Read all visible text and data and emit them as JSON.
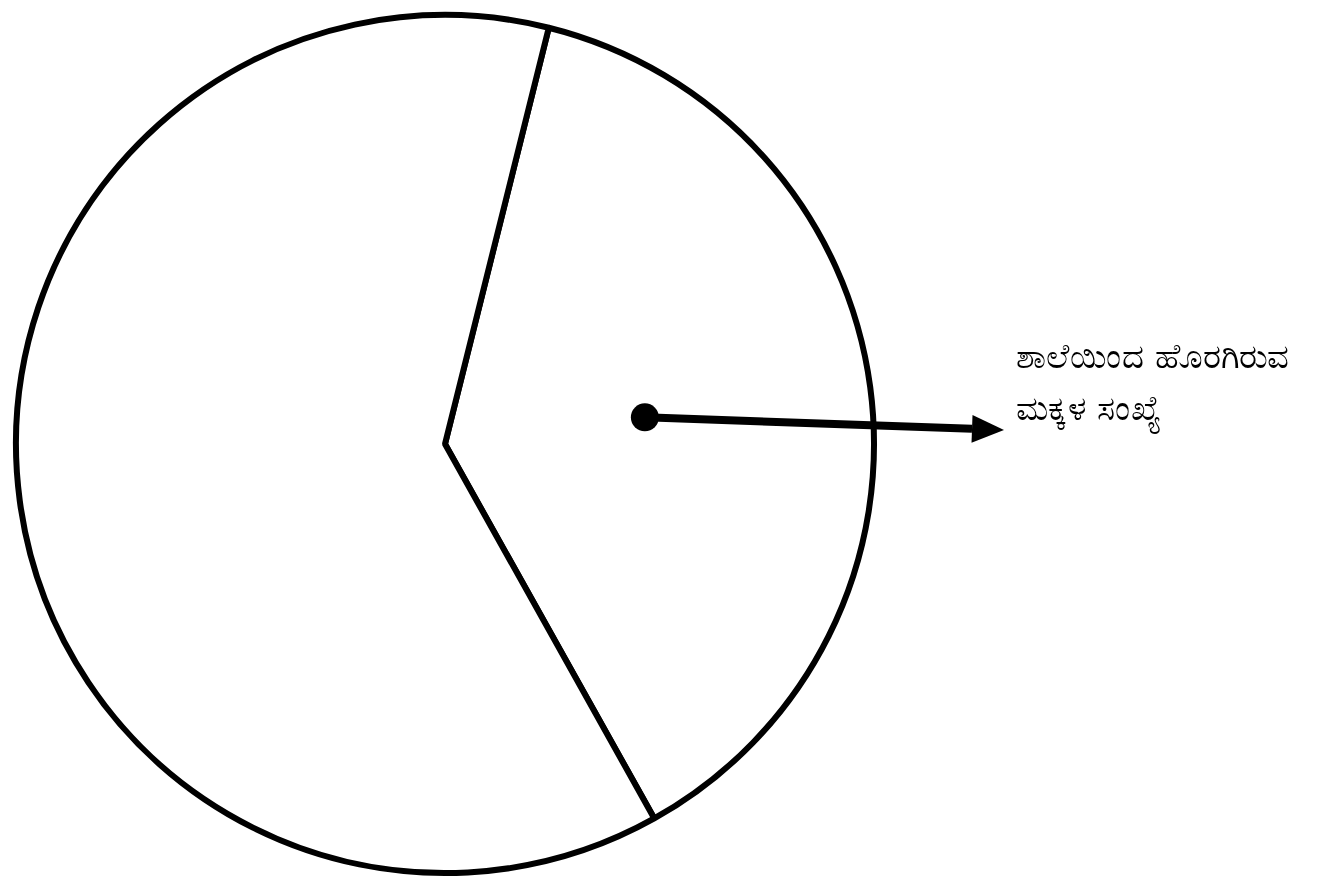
{
  "chart_data": {
    "type": "pie",
    "categories": [
      "ಶಾಲೆಯಿಂದ ಹೊರಗಿರುವ ಮಕ್ಕಳ ಸಂಖ್ಯೆ",
      null
    ],
    "values": [
      38,
      62
    ],
    "colors": [
      "#ffffff",
      "#ffffff"
    ],
    "legend": false
  }
}
